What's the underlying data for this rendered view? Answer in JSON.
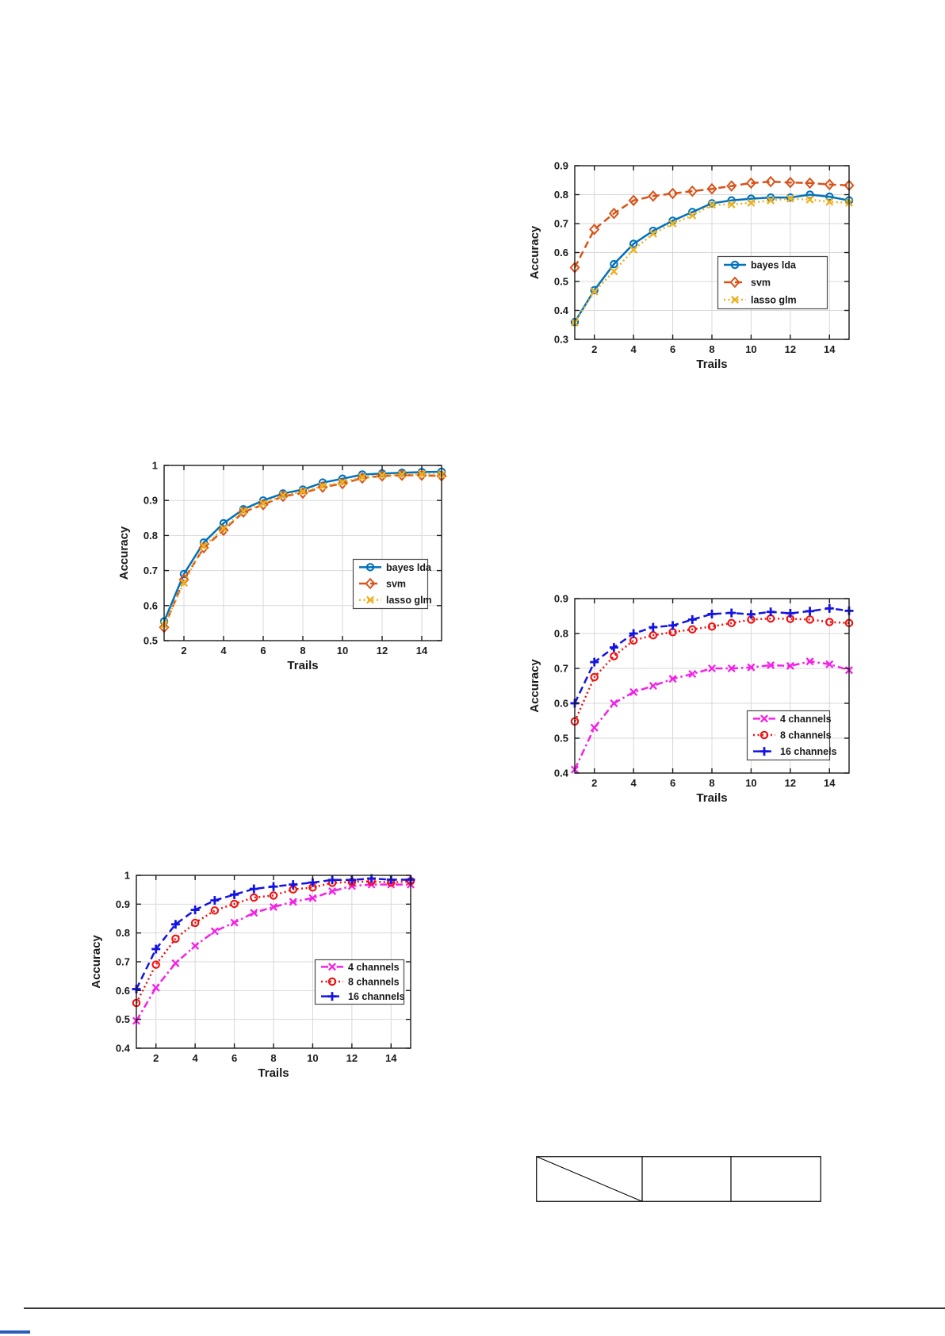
{
  "page": {
    "background": "#ffffff"
  },
  "text_colors": {
    "axis_text": "#1a1a1a",
    "grid": "#d8d8d8",
    "axis_box": "#1a1a1a"
  },
  "chart_data": [
    {
      "id": "classifiers-single-trial",
      "type": "line",
      "title": "",
      "xlabel": "Trails",
      "ylabel": "Accuracy",
      "xlim": [
        1,
        15
      ],
      "ylim": [
        0.3,
        0.9
      ],
      "xticks": [
        2,
        4,
        6,
        8,
        10,
        12,
        14
      ],
      "yticks": [
        0.3,
        0.4,
        0.5,
        0.6,
        0.7,
        0.8,
        0.9
      ],
      "ytick_labels": [
        "0.3",
        "0.4",
        "0.5",
        "0.6",
        "0.7",
        "0.8",
        "0.9"
      ],
      "grid": true,
      "legend_location": "middle-right-inside",
      "x": [
        1,
        2,
        3,
        4,
        5,
        6,
        7,
        8,
        9,
        10,
        11,
        12,
        13,
        14,
        15
      ],
      "series": [
        {
          "name": "bayes lda",
          "color": "#0072BD",
          "line": "solid",
          "marker": "circle",
          "values": [
            0.36,
            0.47,
            0.56,
            0.63,
            0.675,
            0.71,
            0.74,
            0.77,
            0.78,
            0.786,
            0.79,
            0.79,
            0.8,
            0.793,
            0.78
          ]
        },
        {
          "name": "svm",
          "color": "#D95319",
          "line": "dashed",
          "marker": "diamond",
          "values": [
            0.548,
            0.68,
            0.735,
            0.78,
            0.795,
            0.804,
            0.812,
            0.82,
            0.83,
            0.84,
            0.845,
            0.842,
            0.84,
            0.835,
            0.832
          ]
        },
        {
          "name": "lasso glm",
          "color": "#EDB120",
          "line": "dotted",
          "marker": "x",
          "values": [
            0.358,
            0.465,
            0.535,
            0.61,
            0.665,
            0.7,
            0.728,
            0.765,
            0.766,
            0.772,
            0.78,
            0.786,
            0.783,
            0.775,
            0.772
          ]
        }
      ]
    },
    {
      "id": "classifiers-averaged",
      "type": "line",
      "title": "",
      "xlabel": "Trails",
      "ylabel": "Accuracy",
      "xlim": [
        1,
        15
      ],
      "ylim": [
        0.5,
        1.0
      ],
      "xticks": [
        2,
        4,
        6,
        8,
        10,
        12,
        14
      ],
      "yticks": [
        0.5,
        0.6,
        0.7,
        0.8,
        0.9,
        1.0
      ],
      "ytick_labels": [
        "0.5",
        "0.6",
        "0.7",
        "0.8",
        "0.9",
        "1"
      ],
      "grid": true,
      "legend_location": "middle-right-inside",
      "x": [
        1,
        2,
        3,
        4,
        5,
        6,
        7,
        8,
        9,
        10,
        11,
        12,
        13,
        14,
        15
      ],
      "series": [
        {
          "name": "bayes lda",
          "color": "#0072BD",
          "line": "solid",
          "marker": "circle",
          "values": [
            0.555,
            0.69,
            0.78,
            0.835,
            0.875,
            0.9,
            0.92,
            0.931,
            0.951,
            0.962,
            0.974,
            0.977,
            0.979,
            0.981,
            0.982
          ]
        },
        {
          "name": "svm",
          "color": "#D95319",
          "line": "dashed",
          "marker": "diamond",
          "values": [
            0.538,
            0.674,
            0.765,
            0.815,
            0.867,
            0.888,
            0.912,
            0.921,
            0.938,
            0.948,
            0.964,
            0.97,
            0.972,
            0.972,
            0.97
          ]
        },
        {
          "name": "lasso glm",
          "color": "#EDB120",
          "line": "dotted",
          "marker": "x",
          "values": [
            0.545,
            0.665,
            0.77,
            0.82,
            0.87,
            0.891,
            0.915,
            0.925,
            0.941,
            0.952,
            0.966,
            0.972,
            0.974,
            0.975,
            0.974
          ]
        }
      ]
    },
    {
      "id": "channels-single-trial",
      "type": "line",
      "title": "",
      "xlabel": "Trails",
      "ylabel": "Accuracy",
      "xlim": [
        1,
        15
      ],
      "ylim": [
        0.4,
        0.9
      ],
      "xticks": [
        2,
        4,
        6,
        8,
        10,
        12,
        14
      ],
      "yticks": [
        0.4,
        0.5,
        0.6,
        0.7,
        0.8,
        0.9
      ],
      "ytick_labels": [
        "0.4",
        "0.5",
        "0.6",
        "0.7",
        "0.8",
        "0.9"
      ],
      "grid": true,
      "legend_location": "lower-right-inside",
      "x": [
        1,
        2,
        3,
        4,
        5,
        6,
        7,
        8,
        9,
        10,
        11,
        12,
        13,
        14,
        15
      ],
      "series": [
        {
          "name": "4 channels",
          "color": "#F520E8",
          "line": "dashdot",
          "marker": "x",
          "values": [
            0.41,
            0.53,
            0.6,
            0.632,
            0.65,
            0.67,
            0.684,
            0.7,
            0.7,
            0.703,
            0.709,
            0.707,
            0.72,
            0.712,
            0.695
          ]
        },
        {
          "name": "8 channels",
          "color": "#F01010",
          "line": "dotted",
          "marker": "circle",
          "values": [
            0.548,
            0.675,
            0.735,
            0.78,
            0.795,
            0.804,
            0.812,
            0.82,
            0.83,
            0.84,
            0.843,
            0.842,
            0.84,
            0.833,
            0.83
          ]
        },
        {
          "name": "16 channels",
          "color": "#1414E0",
          "line": "dashed",
          "marker": "plus",
          "values": [
            0.6,
            0.718,
            0.76,
            0.8,
            0.818,
            0.823,
            0.84,
            0.856,
            0.859,
            0.855,
            0.862,
            0.858,
            0.864,
            0.872,
            0.865
          ]
        }
      ]
    },
    {
      "id": "channels-averaged",
      "type": "line",
      "title": "",
      "xlabel": "Trails",
      "ylabel": "Accuracy",
      "xlim": [
        1,
        15
      ],
      "ylim": [
        0.4,
        1.0
      ],
      "xticks": [
        2,
        4,
        6,
        8,
        10,
        12,
        14
      ],
      "yticks": [
        0.4,
        0.5,
        0.6,
        0.7,
        0.8,
        0.9,
        1.0
      ],
      "ytick_labels": [
        "0.4",
        "0.5",
        "0.6",
        "0.7",
        "0.8",
        "0.9",
        "1"
      ],
      "grid": true,
      "legend_location": "middle-right-inside",
      "x": [
        1,
        2,
        3,
        4,
        5,
        6,
        7,
        8,
        9,
        10,
        11,
        12,
        13,
        14,
        15
      ],
      "series": [
        {
          "name": "4 channels",
          "color": "#F520E8",
          "line": "dashdot",
          "marker": "x",
          "values": [
            0.495,
            0.61,
            0.695,
            0.755,
            0.806,
            0.836,
            0.87,
            0.89,
            0.908,
            0.921,
            0.945,
            0.963,
            0.968,
            0.968,
            0.968
          ]
        },
        {
          "name": "8 channels",
          "color": "#F01010",
          "line": "dotted",
          "marker": "circle",
          "values": [
            0.557,
            0.69,
            0.78,
            0.835,
            0.878,
            0.901,
            0.923,
            0.93,
            0.951,
            0.958,
            0.974,
            0.977,
            0.979,
            0.975,
            0.98
          ]
        },
        {
          "name": "16 channels",
          "color": "#1414E0",
          "line": "dashed",
          "marker": "plus",
          "values": [
            0.605,
            0.744,
            0.83,
            0.88,
            0.913,
            0.933,
            0.953,
            0.961,
            0.968,
            0.975,
            0.984,
            0.984,
            0.989,
            0.985,
            0.985
          ]
        }
      ]
    }
  ],
  "bottom_table": {
    "cells": [
      "",
      "",
      ""
    ],
    "diagonal_in_first_cell": true,
    "border_color": "#000000"
  },
  "footer": {
    "rule_color": "#3a3a3a",
    "accent_color": "#2d5bba"
  }
}
